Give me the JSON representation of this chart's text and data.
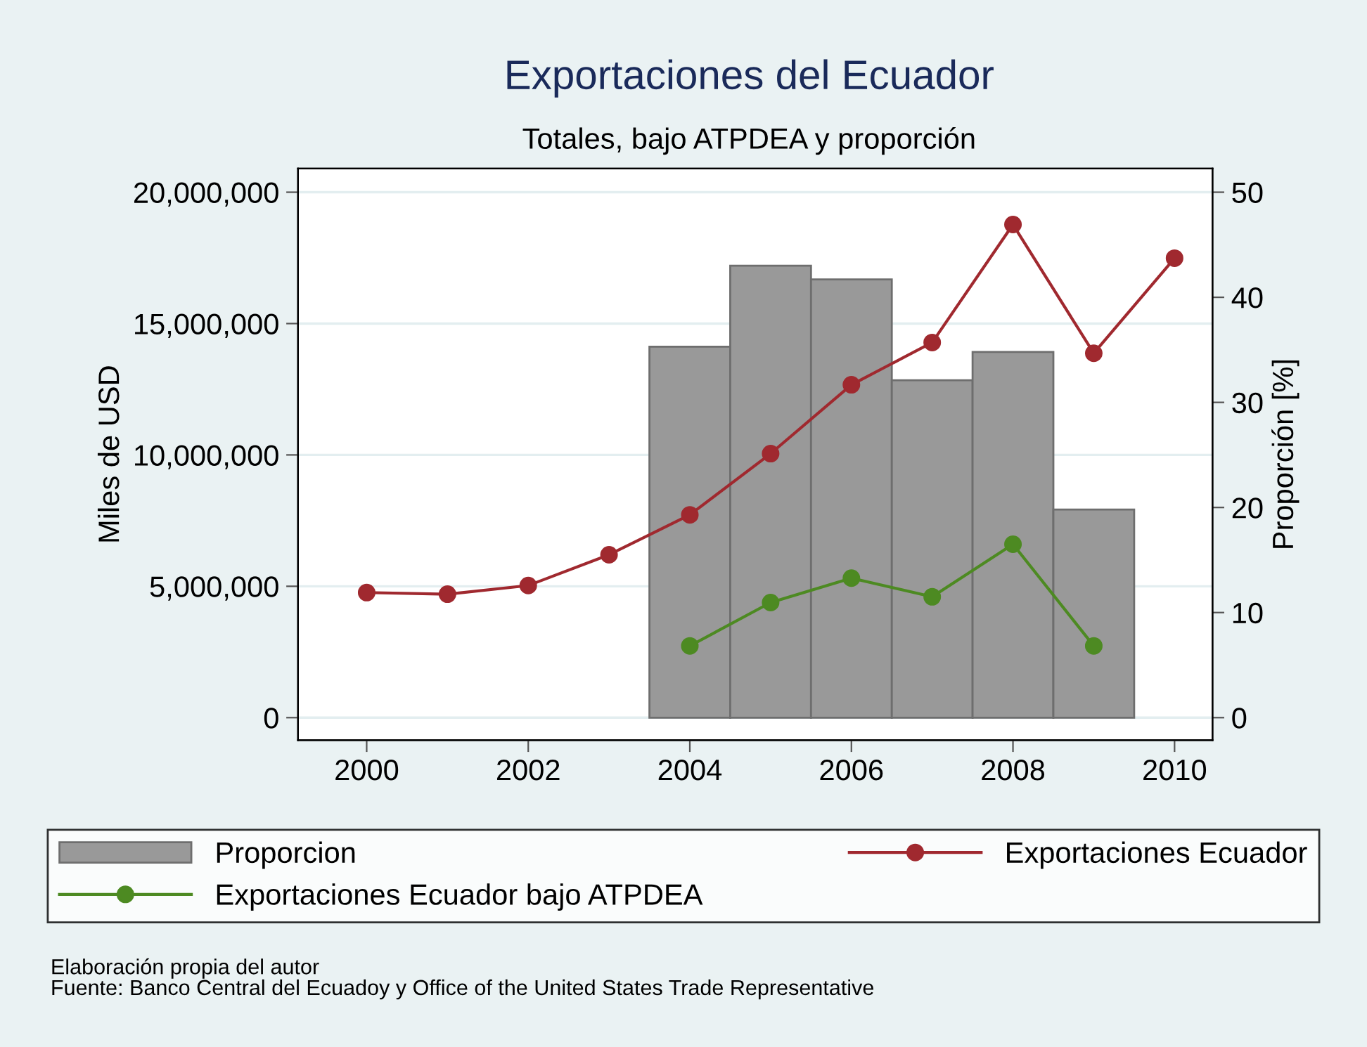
{
  "chart_data": {
    "type": "line",
    "title": "Exportaciones del Ecuador",
    "subtitle": "Totales, bajo ATPDEA y proporción",
    "ylabel": "Miles de USD",
    "y2label": "Proporción [%]",
    "x": [
      2000,
      2001,
      2002,
      2003,
      2004,
      2005,
      2006,
      2007,
      2008,
      2009,
      2010
    ],
    "series": [
      {
        "name": "Proporcion",
        "type": "bar",
        "axis": "y2",
        "color": "#999999",
        "values": [
          null,
          null,
          null,
          null,
          35.3,
          43.0,
          41.7,
          32.1,
          34.8,
          19.8,
          null
        ]
      },
      {
        "name": "Exportaciones Ecuador",
        "color": "#a0292f",
        "values": [
          4760000,
          4700000,
          5030000,
          6200000,
          7720000,
          10050000,
          12670000,
          14280000,
          18770000,
          13870000,
          17490000
        ]
      },
      {
        "name": "Exportaciones Ecuador bajo ATPDEA",
        "color": "#4d8a22",
        "values": [
          null,
          null,
          null,
          null,
          2730000,
          4380000,
          5310000,
          4600000,
          6600000,
          2730000,
          null
        ]
      }
    ],
    "xlim": [
      1999.15,
      2010.47
    ],
    "xticks": [
      2000,
      2002,
      2004,
      2006,
      2008,
      2010
    ],
    "ylim": [
      -860000,
      20900000
    ],
    "yticks": [
      {
        "value": 0,
        "label": "0"
      },
      {
        "value": 5000000,
        "label": "5,000,000"
      },
      {
        "value": 10000000,
        "label": "10,000,000"
      },
      {
        "value": 15000000,
        "label": "15,000,000"
      },
      {
        "value": 20000000,
        "label": "20,000,000"
      }
    ],
    "y2lim": [
      -2.15,
      52.25
    ],
    "y2ticks": [
      0,
      10,
      20,
      30,
      40,
      50
    ],
    "grid": "y",
    "legend": "bottom",
    "marker": "circle",
    "line_style": "solid",
    "annotations": [
      "Elaboración propia del autor",
      "Fuente: Banco Central del Ecuadoy y Office of the United States Trade Representative"
    ]
  }
}
